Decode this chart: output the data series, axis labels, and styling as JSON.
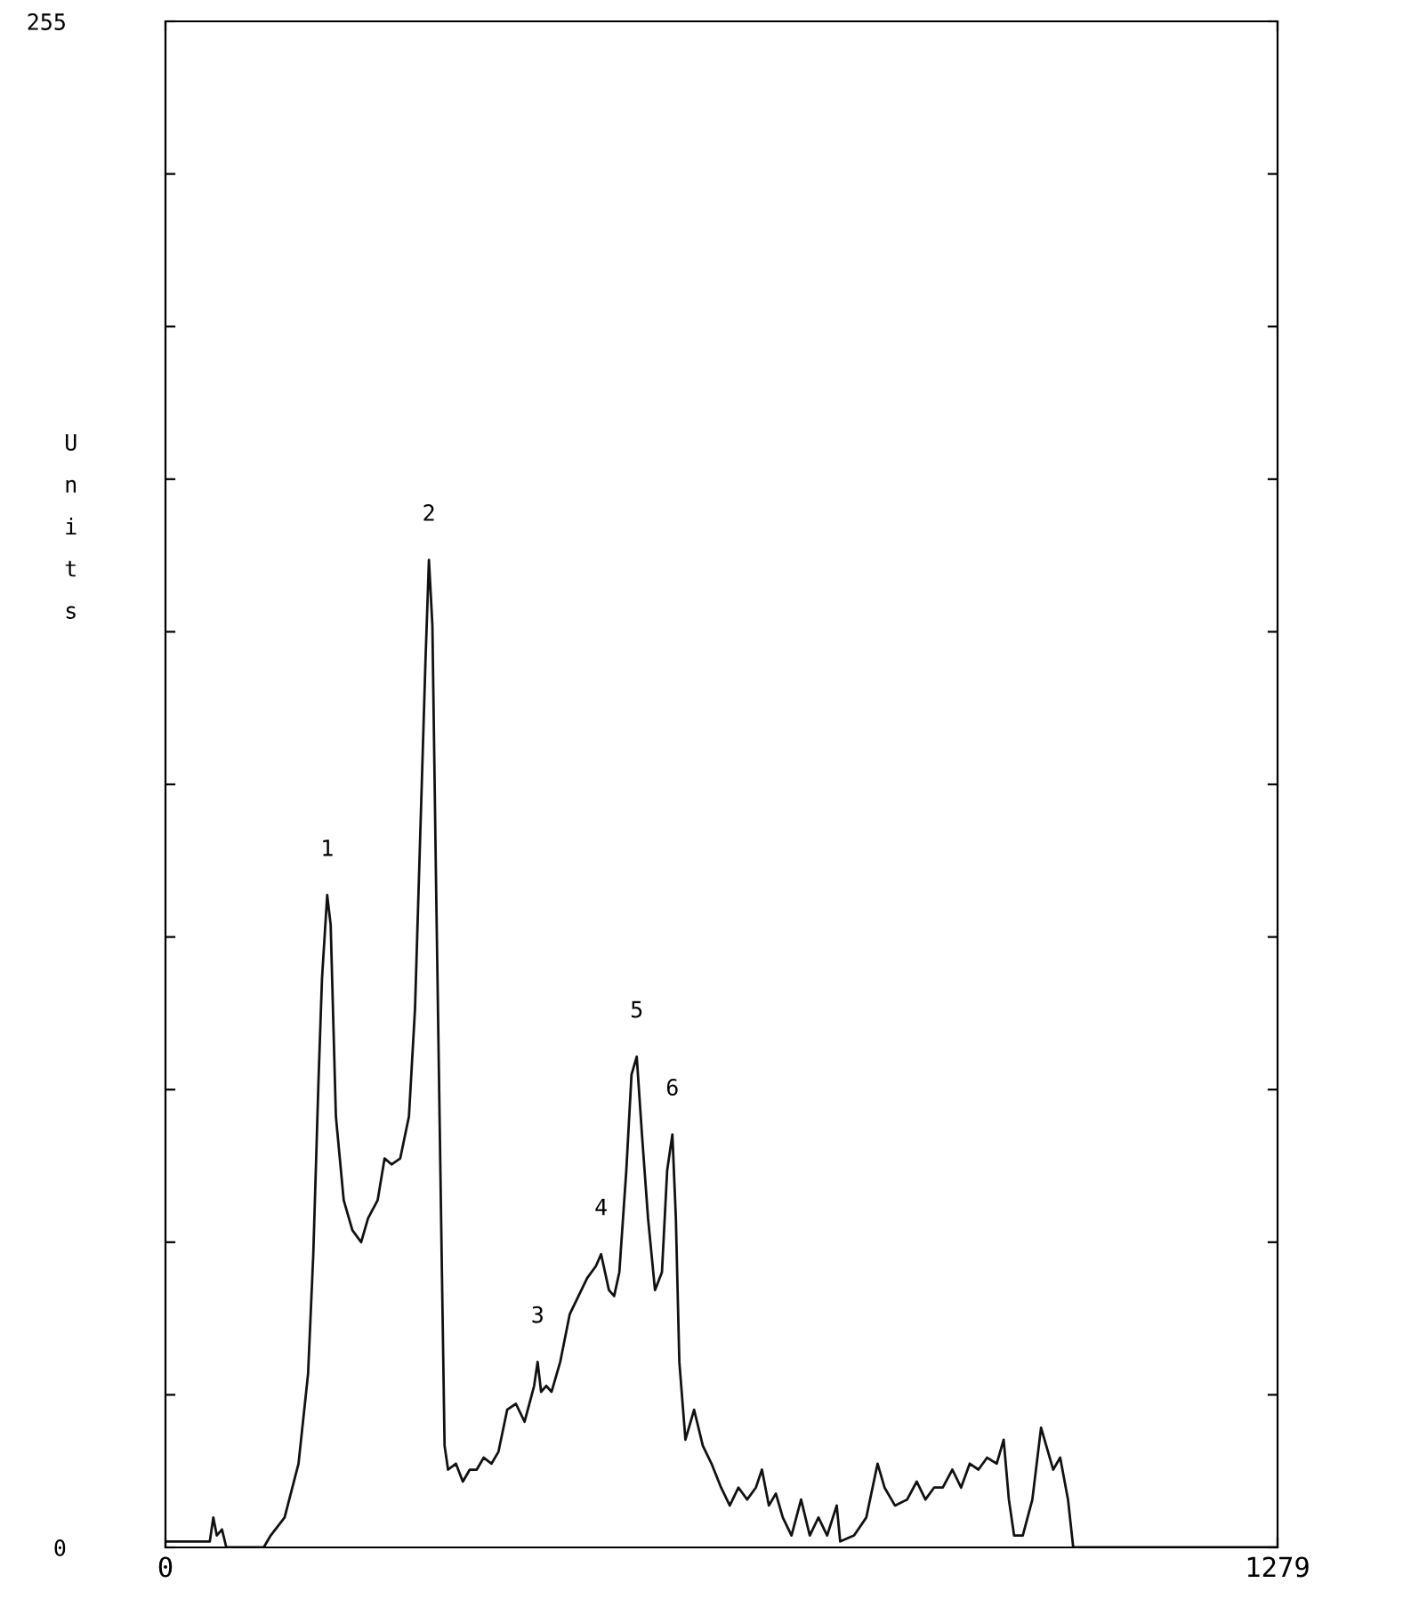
{
  "chart_data": {
    "type": "line",
    "ylabel": "Units",
    "xlim": [
      0,
      1279
    ],
    "ylim": [
      0,
      255
    ],
    "xticks": [
      0,
      1279
    ],
    "yticks": [
      0,
      {
        "value": 25.5,
        "label": null
      },
      {
        "value": 51,
        "label": null
      },
      {
        "value": 76.5,
        "label": null
      },
      {
        "value": 102,
        "label": null
      },
      {
        "value": 127.5,
        "label": null
      },
      {
        "value": 153,
        "label": null
      },
      {
        "value": 178.5,
        "label": null
      },
      {
        "value": 204,
        "label": null
      },
      {
        "value": 229.5,
        "label": null
      },
      255
    ],
    "grid": false,
    "marker": "none",
    "line_style": "solid",
    "series": [
      {
        "color": "#111111",
        "x": [
          0,
          51,
          55,
          59,
          65,
          70,
          113,
          121,
          137,
          153,
          164,
          170,
          176,
          180,
          186,
          190,
          196,
          205,
          215,
          225,
          233,
          244,
          252,
          260,
          270,
          280,
          287,
          293,
          299,
          303,
          307,
          311,
          317,
          321,
          325,
          334,
          342,
          350,
          358,
          366,
          375,
          383,
          393,
          403,
          413,
          424,
          428,
          432,
          438,
          444,
          454,
          465,
          475,
          485,
          495,
          501,
          510,
          516,
          522,
          530,
          536,
          542,
          548,
          555,
          563,
          571,
          577,
          583,
          587,
          591,
          598,
          608,
          618,
          628,
          639,
          649,
          659,
          669,
          679,
          686,
          694,
          702,
          710,
          720,
          731,
          741,
          751,
          761,
          772,
          776,
          792,
          806,
          819,
          827,
          839,
          853,
          864,
          874,
          884,
          894,
          905,
          915,
          925,
          935,
          945,
          956,
          964,
          970,
          976,
          986,
          997,
          1007,
          1013,
          1021,
          1029,
          1038,
          1044,
          1279
        ],
        "values": [
          1,
          1,
          5,
          2,
          3,
          0,
          0,
          2,
          5,
          14,
          29,
          49,
          78,
          95,
          109,
          104,
          72,
          58,
          53,
          51,
          55,
          58,
          65,
          64,
          65,
          72,
          90,
          119,
          148,
          165,
          154,
          113,
          55,
          17,
          13,
          14,
          11,
          13,
          13,
          15,
          14,
          16,
          23,
          24,
          21,
          27,
          31,
          26,
          27,
          26,
          31,
          39,
          42,
          45,
          47,
          49,
          43,
          42,
          46,
          63,
          79,
          82,
          69,
          55,
          43,
          46,
          63,
          69,
          55,
          31,
          18,
          23,
          17,
          14,
          10,
          7,
          10,
          8,
          10,
          13,
          7,
          9,
          5,
          2,
          8,
          2,
          5,
          2,
          7,
          1,
          2,
          5,
          14,
          10,
          7,
          8,
          11,
          8,
          10,
          10,
          13,
          10,
          14,
          13,
          15,
          14,
          18,
          8,
          2,
          2,
          8,
          20,
          17,
          13,
          15,
          8,
          0,
          0
        ]
      }
    ],
    "annotations": [
      {
        "text": "1",
        "x": 186,
        "y": 109
      },
      {
        "text": "2",
        "x": 303,
        "y": 165
      },
      {
        "text": "3",
        "x": 428,
        "y": 31
      },
      {
        "text": "4",
        "x": 501,
        "y": 49
      },
      {
        "text": "5",
        "x": 542,
        "y": 82
      },
      {
        "text": "6",
        "x": 583,
        "y": 69
      }
    ]
  }
}
